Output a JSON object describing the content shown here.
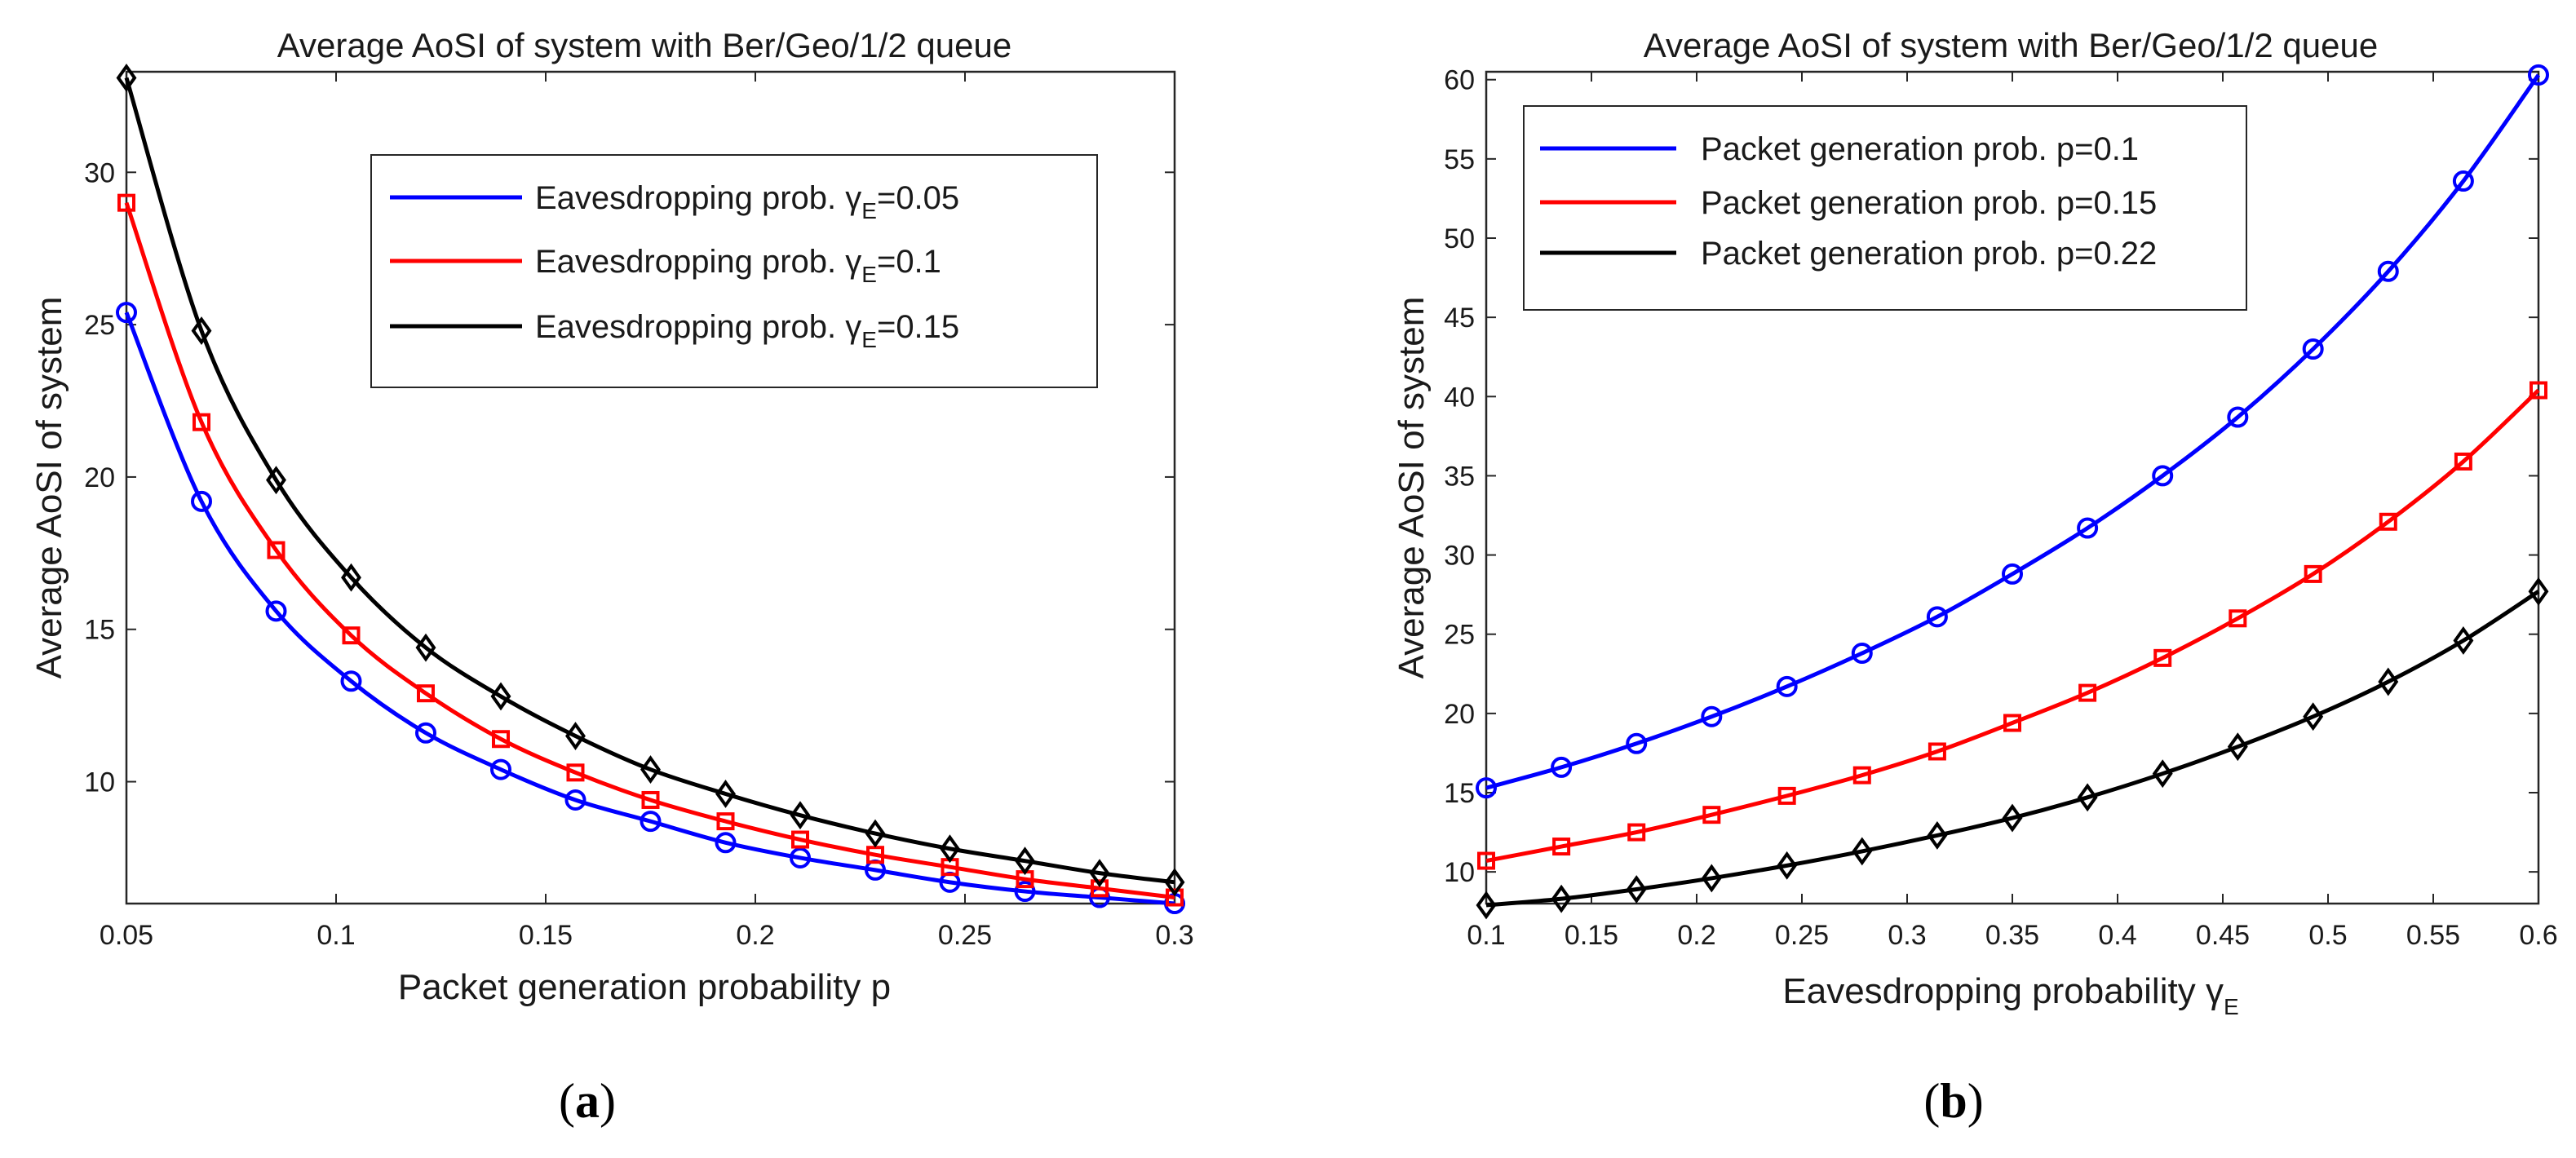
{
  "chart_data": [
    {
      "type": "line",
      "panel_label": "(a)",
      "title": "Average AoSI of system with Ber/Geo/1/2 queue",
      "xlabel": "Packet generation probability p",
      "ylabel": "Average AoSI of system",
      "xlim": [
        0.05,
        0.3
      ],
      "ylim": [
        6,
        33.3
      ],
      "xticks": [
        0.05,
        0.1,
        0.15,
        0.2,
        0.25,
        0.3
      ],
      "xtick_labels": [
        "0.05",
        "0.1",
        "0.15",
        "0.2",
        "0.25",
        "0.3"
      ],
      "yticks": [
        10,
        15,
        20,
        25,
        30
      ],
      "ytick_labels": [
        "10",
        "15",
        "20",
        "25",
        "30"
      ],
      "legend_position": "top-right",
      "x": [
        0.05,
        0.0679,
        0.0857,
        0.1036,
        0.1214,
        0.1393,
        0.1571,
        0.175,
        0.1929,
        0.2107,
        0.2286,
        0.2464,
        0.2643,
        0.2821,
        0.3
      ],
      "series": [
        {
          "name": "Eavesdropping prob.",
          "symbol": "γ",
          "subscript": "E",
          "value_text": "=0.05",
          "color": "#0000ff",
          "marker": "circle",
          "values": [
            25.4,
            19.2,
            15.6,
            13.3,
            11.6,
            10.4,
            9.4,
            8.7,
            8.0,
            7.5,
            7.1,
            6.7,
            6.4,
            6.2,
            6.0
          ]
        },
        {
          "name": "Eavesdropping prob.",
          "symbol": "γ",
          "subscript": "E",
          "value_text": "=0.1",
          "color": "#ff0000",
          "marker": "square",
          "values": [
            29.0,
            21.8,
            17.6,
            14.8,
            12.9,
            11.4,
            10.3,
            9.4,
            8.7,
            8.1,
            7.6,
            7.2,
            6.8,
            6.5,
            6.2
          ]
        },
        {
          "name": "Eavesdropping prob.",
          "symbol": "γ",
          "subscript": "E",
          "value_text": "=0.15",
          "color": "#000000",
          "marker": "diamond",
          "values": [
            33.1,
            24.8,
            19.9,
            16.7,
            14.4,
            12.8,
            11.5,
            10.4,
            9.6,
            8.9,
            8.3,
            7.8,
            7.4,
            7.0,
            6.7
          ]
        }
      ]
    },
    {
      "type": "line",
      "panel_label": "(b)",
      "title": "Average AoSI of system with Ber/Geo/1/2 queue",
      "xlabel": "Eavesdropping probability",
      "xlabel_symbol": "γ",
      "xlabel_subscript": "E",
      "ylabel": "Average AoSI of system",
      "xlim": [
        0.1,
        0.6
      ],
      "ylim": [
        8,
        60.5
      ],
      "xticks": [
        0.1,
        0.15,
        0.2,
        0.25,
        0.3,
        0.35,
        0.4,
        0.45,
        0.5,
        0.55,
        0.6
      ],
      "xtick_labels": [
        "0.1",
        "0.15",
        "0.2",
        "0.25",
        "0.3",
        "0.35",
        "0.4",
        "0.45",
        "0.5",
        "0.55",
        "0.6"
      ],
      "yticks": [
        10,
        15,
        20,
        25,
        30,
        35,
        40,
        45,
        50,
        55,
        60
      ],
      "ytick_labels": [
        "10",
        "15",
        "20",
        "25",
        "30",
        "35",
        "40",
        "45",
        "50",
        "55",
        "60"
      ],
      "legend_position": "top-left",
      "x": [
        0.1,
        0.1357,
        0.1714,
        0.2071,
        0.2429,
        0.2786,
        0.3143,
        0.35,
        0.3857,
        0.4214,
        0.4571,
        0.4929,
        0.5286,
        0.5643,
        0.6
      ],
      "series": [
        {
          "name": "Packet generation prob. p=0.1",
          "color": "#0000ff",
          "marker": "circle",
          "values": [
            15.3,
            16.6,
            18.1,
            19.8,
            21.7,
            23.8,
            26.1,
            28.8,
            31.7,
            35.0,
            38.7,
            43.0,
            47.9,
            53.6,
            60.3
          ]
        },
        {
          "name": "Packet generation prob. p=0.15",
          "color": "#ff0000",
          "marker": "square",
          "values": [
            10.7,
            11.6,
            12.5,
            13.6,
            14.8,
            16.1,
            17.6,
            19.4,
            21.3,
            23.5,
            26.0,
            28.8,
            32.1,
            35.9,
            40.4
          ]
        },
        {
          "name": "Packet generation prob. p=0.22",
          "color": "#000000",
          "marker": "diamond",
          "values": [
            7.9,
            8.3,
            8.9,
            9.6,
            10.4,
            11.3,
            12.3,
            13.4,
            14.7,
            16.2,
            17.9,
            19.8,
            22.0,
            24.6,
            27.7
          ]
        }
      ]
    }
  ]
}
